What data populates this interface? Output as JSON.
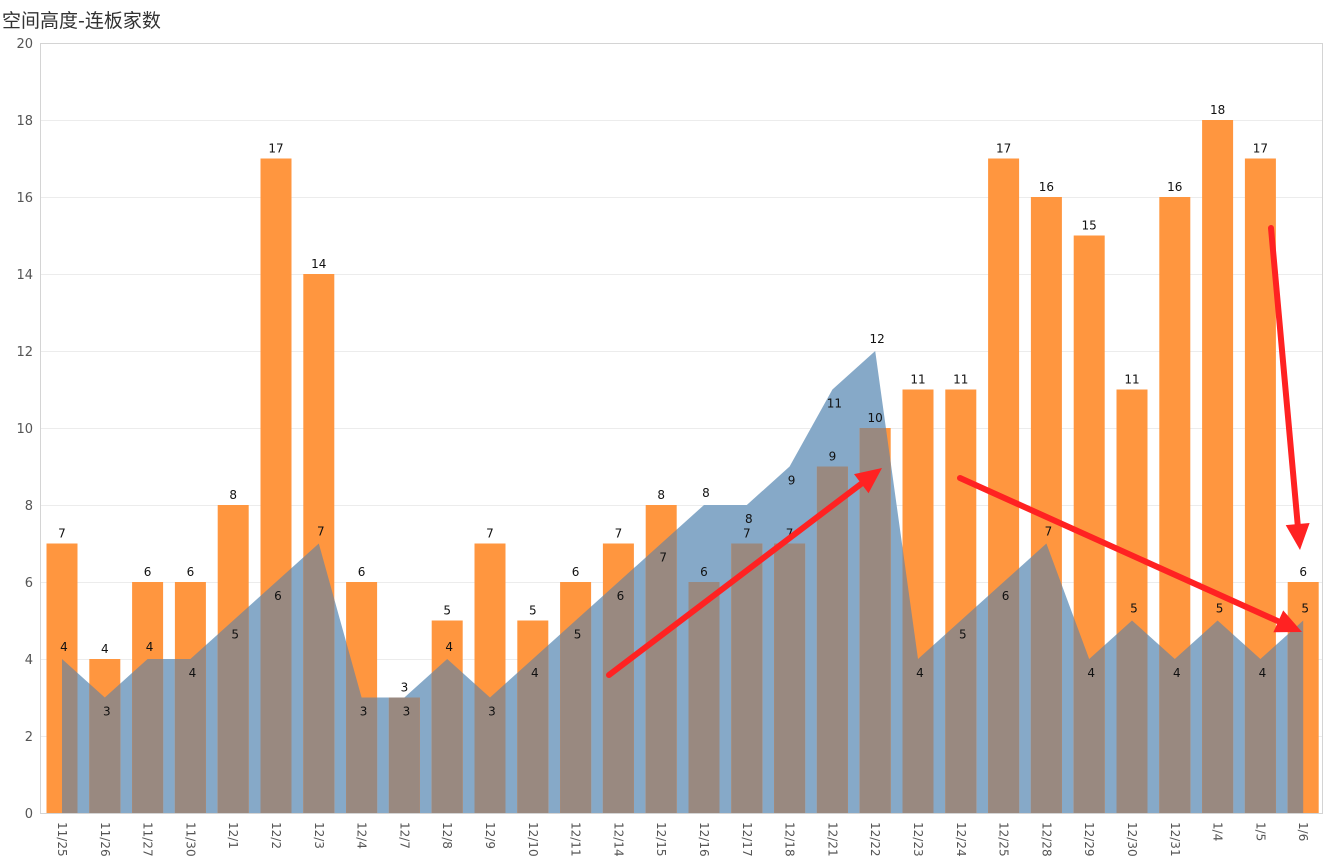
{
  "chart_data": {
    "type": "bar",
    "title": "空间高度-连板家数",
    "categories": [
      "11/25",
      "11/26",
      "11/27",
      "11/30",
      "12/1",
      "12/2",
      "12/3",
      "12/4",
      "12/7",
      "12/8",
      "12/9",
      "12/10",
      "12/11",
      "12/14",
      "12/15",
      "12/16",
      "12/17",
      "12/18",
      "12/21",
      "12/22",
      "12/23",
      "12/24",
      "12/25",
      "12/28",
      "12/29",
      "12/30",
      "12/31",
      "1/4",
      "1/5",
      "1/6"
    ],
    "series": [
      {
        "type": "bar",
        "values": [
          7,
          4,
          6,
          6,
          8,
          17,
          14,
          6,
          3,
          5,
          7,
          5,
          6,
          7,
          8,
          6,
          7,
          7,
          9,
          10,
          11,
          11,
          17,
          16,
          15,
          11,
          16,
          18,
          17,
          6
        ]
      },
      {
        "type": "area",
        "values": [
          4,
          3,
          4,
          4,
          5,
          6,
          7,
          3,
          3,
          4,
          3,
          4,
          5,
          6,
          7,
          8,
          8,
          9,
          11,
          12,
          4,
          5,
          6,
          7,
          4,
          5,
          4,
          5,
          4,
          5
        ]
      }
    ],
    "ylim": [
      0,
      20
    ],
    "yticks": [
      0,
      2,
      4,
      6,
      8,
      10,
      12,
      14,
      16,
      18,
      20
    ],
    "xlabel": "",
    "ylabel": "",
    "grid": true,
    "colors": {
      "bar": "#FF963F",
      "area": "#86A9C8",
      "overlap": "#998980",
      "arrow": "#FF2222"
    },
    "annotations": [
      "arrow-up-12/14-to-12/22",
      "arrow-down-12/24-to-1/6",
      "arrow-down-1/5-to-1/6"
    ]
  }
}
